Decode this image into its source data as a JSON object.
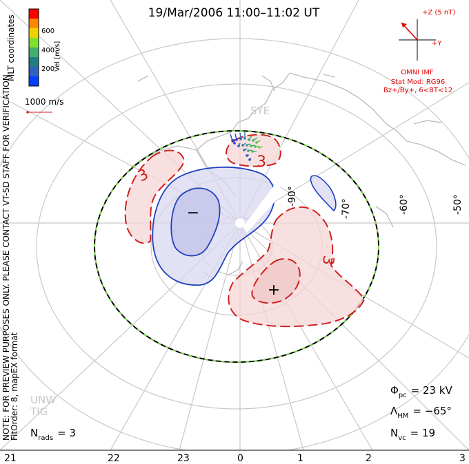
{
  "title": "19/Mar/2006 11:00–11:02 UT",
  "side_note": "NOTE: FOR PREVIEW PURPOSES ONLY. PLEASE CONTACT VT-SD STAFF FOR VERIFICATION.",
  "fit_order": "FitOrder: 8, mapEX format",
  "coords_label": "MLT coordinates",
  "colorbar": {
    "label": "Vel [m/s]",
    "ticks": [
      "600",
      "400",
      "200"
    ],
    "colors": [
      "#ff0000",
      "#ff8800",
      "#f0d000",
      "#80e030",
      "#40b070",
      "#208080",
      "#3060c0",
      "#0040ff"
    ]
  },
  "vector_scale_label": "1000 m/s",
  "imf": {
    "z_label": "+Z (5 nT)",
    "y_label": "+Y",
    "source": "OMNI IMF",
    "stat_mod": "Stat Mod: RG96",
    "condition": "Bz+/By+, 6<BT<12",
    "color": "#e00000"
  },
  "station_labels": [
    "SYE",
    "UNW",
    "TIG"
  ],
  "lat_labels": [
    "-90°",
    "-70°",
    "-60°",
    "-50°"
  ],
  "mlt_labels": [
    "21",
    "22",
    "23",
    "0",
    "1",
    "2",
    "3"
  ],
  "stats": {
    "phi_symbol": "Φ",
    "phi_sub": "pc",
    "phi_value": "= 23 kV",
    "lambda_symbol": "Λ",
    "lambda_sub": "HM",
    "lambda_value": "= −65°",
    "nvc_symbol": "N",
    "nvc_sub": "vc",
    "nvc_value": "= 19",
    "nrads_symbol": "N",
    "nrads_sub": "rads",
    "nrads_value": "= 3"
  },
  "contour_labels": [
    "3",
    "3",
    "3",
    "−",
    "+"
  ],
  "chart_data": {
    "type": "polar convection map",
    "title": "19/Mar/2006 11:00–11:02 UT",
    "coordinates": "MLT",
    "mlt_ticks": [
      "21",
      "22",
      "23",
      "0",
      "1",
      "2",
      "3"
    ],
    "latitude_ticks": [
      -90,
      -70,
      -60,
      -50
    ],
    "heppner_maynard_boundary_deg": -65,
    "cross_polar_cap_potential_kV": 23,
    "n_vectors": 19,
    "n_radars": 3,
    "potential_cells": [
      {
        "sign": "-",
        "color": "#0033aa"
      },
      {
        "sign": "+",
        "color": "#cc0000"
      }
    ],
    "contour_labels": [
      "3",
      "3",
      "3"
    ]
  }
}
